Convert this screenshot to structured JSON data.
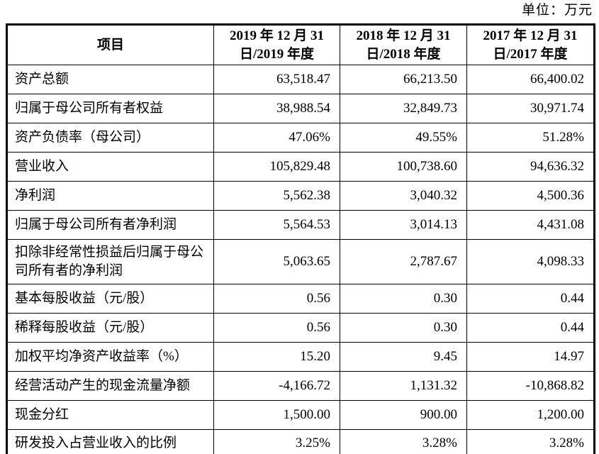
{
  "unit_label": "单位：万元",
  "table": {
    "headers": [
      "项目",
      "2019 年 12 月 31\n日/2019 年度",
      "2018 年 12 月 31\n日/2018 年度",
      "2017 年 12 月 31\n日/2017 年度"
    ],
    "rows": [
      {
        "label": "资产总额",
        "values": [
          "63,518.47",
          "66,213.50",
          "66,400.02"
        ]
      },
      {
        "label": "归属于母公司所有者权益",
        "values": [
          "38,988.54",
          "32,849.73",
          "30,971.74"
        ]
      },
      {
        "label": "资产负债率（母公司）",
        "values": [
          "47.06%",
          "49.55%",
          "51.28%"
        ]
      },
      {
        "label": "营业收入",
        "values": [
          "105,829.48",
          "100,738.60",
          "94,636.32"
        ]
      },
      {
        "label": "净利润",
        "values": [
          "5,562.38",
          "3,040.32",
          "4,500.36"
        ]
      },
      {
        "label": "归属于母公司所有者净利润",
        "values": [
          "5,564.53",
          "3,014.13",
          "4,431.08"
        ]
      },
      {
        "label": "扣除非经常性损益后归属于母公司所有者的净利润",
        "values": [
          "5,063.65",
          "2,787.67",
          "4,098.33"
        ]
      },
      {
        "label": "基本每股收益（元/股）",
        "values": [
          "0.56",
          "0.30",
          "0.44"
        ]
      },
      {
        "label": "稀释每股收益（元/股）",
        "values": [
          "0.56",
          "0.30",
          "0.44"
        ]
      },
      {
        "label": "加权平均净资产收益率（%）",
        "values": [
          "15.20",
          "9.45",
          "14.97"
        ]
      },
      {
        "label": "经营活动产生的现金流量净额",
        "values": [
          "-4,166.72",
          "1,131.32",
          "-10,868.82"
        ]
      },
      {
        "label": "现金分红",
        "values": [
          "1,500.00",
          "900.00",
          "1,200.00"
        ]
      },
      {
        "label": "研发投入占营业收入的比例",
        "values": [
          "3.25%",
          "3.28%",
          "3.28%"
        ]
      }
    ]
  }
}
